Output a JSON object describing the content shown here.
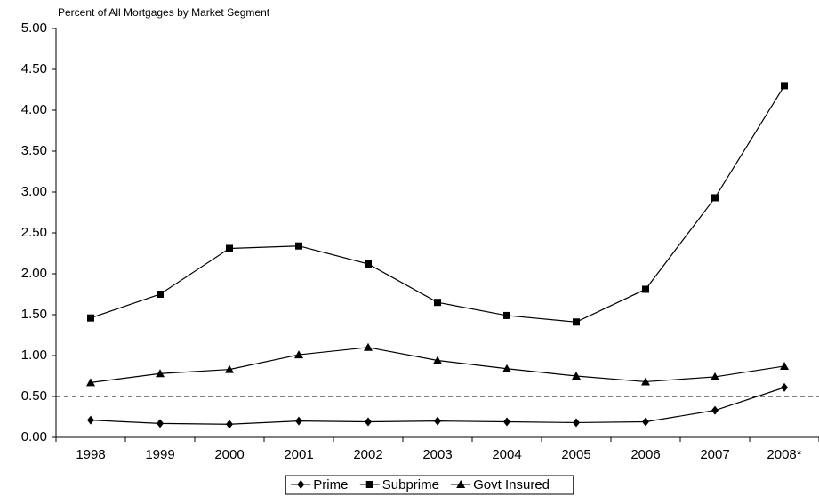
{
  "chart_data": {
    "type": "line",
    "title": "Percent of All Mortgages by Market Segment",
    "categories": [
      "1998",
      "1999",
      "2000",
      "2001",
      "2002",
      "2003",
      "2004",
      "2005",
      "2006",
      "2007",
      "2008*"
    ],
    "series": [
      {
        "name": "Prime",
        "color": "#000000",
        "marker": "diamond",
        "values": [
          0.21,
          0.17,
          0.16,
          0.2,
          0.19,
          0.2,
          0.19,
          0.18,
          0.19,
          0.33,
          0.61
        ]
      },
      {
        "name": "Subprime",
        "color": "#000000",
        "marker": "square",
        "values": [
          1.46,
          1.75,
          2.31,
          2.34,
          2.12,
          1.65,
          1.49,
          1.41,
          1.81,
          2.93,
          4.3
        ]
      },
      {
        "name": "Govt Insured",
        "color": "#000000",
        "marker": "triangle",
        "values": [
          0.67,
          0.78,
          0.83,
          1.01,
          1.1,
          0.94,
          0.84,
          0.75,
          0.68,
          0.74,
          0.87
        ]
      }
    ],
    "reference_line": 0.5,
    "ylim": [
      0,
      5
    ],
    "yticks": [
      {
        "value": 0,
        "label": "0.00"
      },
      {
        "value": 0.5,
        "label": "0.50"
      },
      {
        "value": 1,
        "label": "1.00"
      },
      {
        "value": 1.5,
        "label": "1.50"
      },
      {
        "value": 2,
        "label": "2.00"
      },
      {
        "value": 2.5,
        "label": "2.50"
      },
      {
        "value": 3,
        "label": "3.00"
      },
      {
        "value": 3.5,
        "label": "3.50"
      },
      {
        "value": 4,
        "label": "4.00"
      },
      {
        "value": 4.5,
        "label": "4.50"
      },
      {
        "value": 5,
        "label": "5.00"
      }
    ],
    "legend": "bottom"
  }
}
